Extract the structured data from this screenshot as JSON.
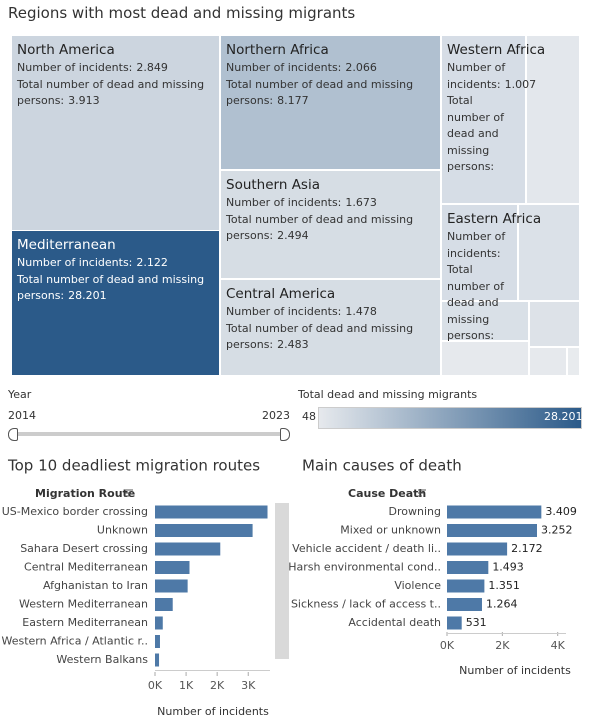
{
  "chart_data": [
    {
      "type": "treemap",
      "title": "Regions with most dead and missing migrants",
      "categories": [
        "North America",
        "Northern Africa",
        "Western Africa",
        "Southern Asia",
        "Eastern Africa",
        "Mediterranean",
        "Central America"
      ],
      "incidents_label": "Number of incidents:",
      "incidents": [
        2849,
        2066,
        1007,
        1673,
        null,
        2122,
        1478
      ],
      "incidents_labels": [
        "2.849",
        "2.066",
        "1.007",
        "1.673",
        null,
        "2.122",
        "1.478"
      ],
      "dead_label": "Total number of dead and missing persons:",
      "dead": [
        3913,
        8177,
        null,
        2494,
        null,
        28201,
        2483
      ],
      "dead_labels": [
        "3.913",
        "8.177",
        null,
        "2.494",
        null,
        "28.201",
        "2.483"
      ],
      "color_legend_title": "Total dead and missing migrants",
      "colorticks": [
        48,
        {
          "value": 28201,
          "label": "28.201"
        }
      ],
      "colors": [
        "#e6e9ed",
        "#2b5a89"
      ]
    },
    {
      "type": "bar",
      "title": "Top 10 deadliest migration routes",
      "category_label": "Migration Route",
      "x_label": "Number of incidents",
      "categories": [
        "US-Mexico border crossing",
        "Unknown",
        "Sahara Desert crossing",
        "Central Mediterranean",
        "Afghanistan to Iran",
        "Western Mediterranean",
        "Eastern Mediterranean",
        "Western Africa / Atlantic r..",
        "Western Balkans"
      ],
      "values": [
        3620,
        3140,
        2100,
        1110,
        1050,
        570,
        250,
        160,
        130
      ],
      "color": "#4e79a7",
      "xlim": [
        0,
        3700
      ],
      "xticks": [
        {
          "value": 0,
          "label": "0K"
        },
        {
          "value": 1000,
          "label": "1K"
        },
        {
          "value": 2000,
          "label": "2K"
        },
        {
          "value": 3000,
          "label": "3K"
        }
      ]
    },
    {
      "type": "bar",
      "title": "Main causes of death",
      "category_label": "Cause Death",
      "x_label": "Number of incidents",
      "categories": [
        "Drowning",
        "Mixed or unknown",
        "Vehicle accident / death li..",
        "Harsh environmental cond..",
        "Violence",
        "Sickness / lack of access t..",
        "Accidental death"
      ],
      "values": [
        3409,
        3252,
        2172,
        1493,
        1351,
        1264,
        531
      ],
      "value_labels": [
        "3.409",
        "3.252",
        "2.172",
        "1.493",
        "1.351",
        "1.264",
        "531"
      ],
      "color": "#4e79a7",
      "xlim": [
        0,
        4300
      ],
      "xticks": [
        {
          "value": 0,
          "label": "0K"
        },
        {
          "value": 2000,
          "label": "2K"
        },
        {
          "value": 4000,
          "label": "4K"
        }
      ]
    }
  ],
  "filters": {
    "year": {
      "title": "Year",
      "min": 2014,
      "max": 2023
    }
  }
}
